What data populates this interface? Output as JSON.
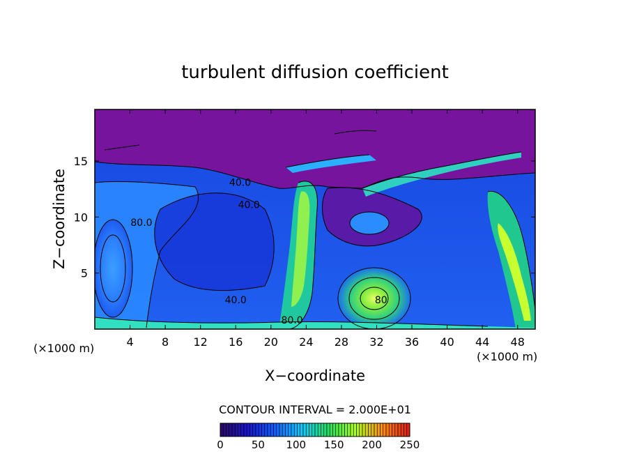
{
  "chart_data": {
    "type": "heatmap",
    "title": "turbulent diffusion coefficient",
    "xlabel": "X−coordinate",
    "ylabel": "Z−coordinate",
    "x_unit_left": "(×1000 m)",
    "x_unit_right": "(×1000 m)",
    "xlim": [
      0,
      50
    ],
    "ylim": [
      0,
      19.6
    ],
    "x_ticks": [
      4,
      8,
      12,
      16,
      20,
      24,
      28,
      32,
      36,
      40,
      44,
      48
    ],
    "y_ticks": [
      5,
      10,
      15
    ],
    "contour_interval_text": "CONTOUR INTERVAL = 2.000E+01",
    "contour_labels": [
      {
        "text": "40.0",
        "x": 16.5,
        "y": 12.8
      },
      {
        "text": "40.0",
        "x": 17.5,
        "y": 10.8
      },
      {
        "text": "40.0",
        "x": 16.0,
        "y": 2.3
      },
      {
        "text": "80.0",
        "x": 5.3,
        "y": 9.2
      },
      {
        "text": "80.0",
        "x": 22.4,
        "y": 0.5
      },
      {
        "text": "80",
        "x": 32.5,
        "y": 2.3
      }
    ],
    "colorbar": {
      "ticks": [
        0,
        50,
        100,
        150,
        200,
        250
      ],
      "range": [
        0,
        250
      ],
      "colors": [
        "#2a0868",
        "#1818d0",
        "#1060ff",
        "#10c8ff",
        "#20e060",
        "#a8ff20",
        "#ff9010",
        "#e02010"
      ]
    }
  }
}
